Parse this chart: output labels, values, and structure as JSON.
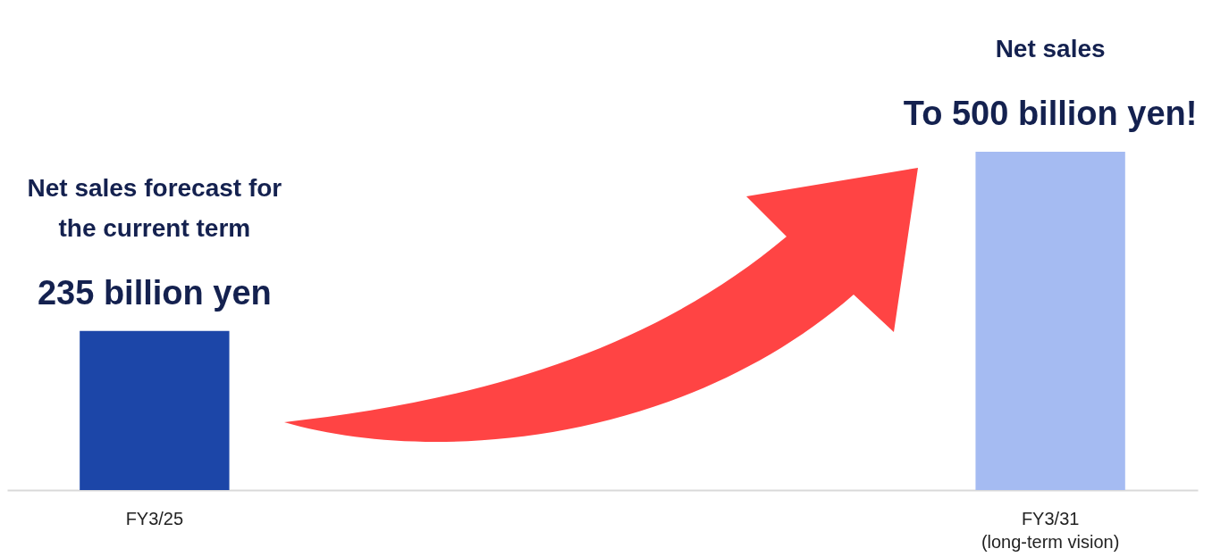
{
  "chart_data": {
    "type": "bar",
    "categories": [
      "FY3/25",
      "FY3/31\n(long-term vision)"
    ],
    "values": [
      235,
      500
    ],
    "colors": [
      "#1c46a8",
      "#a5bbf2"
    ],
    "value_labels": [
      "235 billion yen",
      "To 500 billion yen!"
    ],
    "annotations": [
      "Net sales forecast for the current term",
      "Net sales"
    ]
  }
}
